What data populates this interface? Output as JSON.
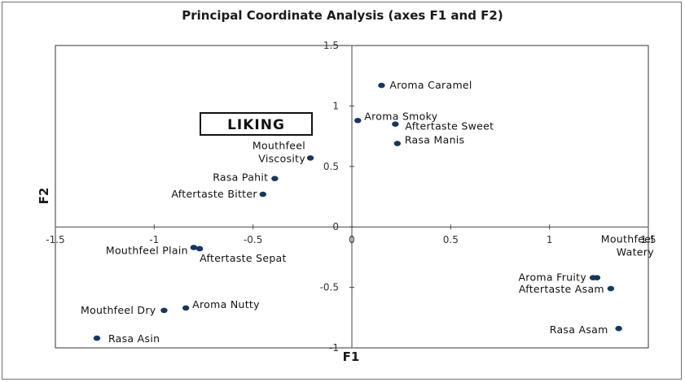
{
  "chart_data": {
    "type": "scatter",
    "title": "Principal Coordinate Analysis (axes F1 and F2)",
    "xlabel": "F1",
    "ylabel": "F2",
    "xlim": [
      -1.5,
      1.5
    ],
    "ylim": [
      -1,
      1.5
    ],
    "x_ticks": [
      "-1.5",
      "-1",
      "-0.5",
      "0",
      "0.5",
      "1",
      "1.5"
    ],
    "y_ticks": [
      "-1",
      "-0.5",
      "0",
      "0.5",
      "1",
      "1.5"
    ],
    "annotation": "LIKING",
    "marker_color": "#17375e",
    "points": [
      {
        "label": "Aroma Caramel",
        "x": 0.15,
        "y": 1.17
      },
      {
        "label": "Aroma Smoky",
        "x": 0.03,
        "y": 0.88
      },
      {
        "label": "Aftertaste Sweet",
        "x": 0.22,
        "y": 0.85
      },
      {
        "label": "Rasa Manis",
        "x": 0.23,
        "y": 0.69
      },
      {
        "label": "Mouthfeel Viscosity",
        "x": -0.21,
        "y": 0.57
      },
      {
        "label": "Rasa Pahit",
        "x": -0.39,
        "y": 0.4
      },
      {
        "label": "Aftertaste Bitter",
        "x": -0.45,
        "y": 0.27
      },
      {
        "label": "Mouthfeel Plain",
        "x": -0.8,
        "y": -0.17
      },
      {
        "label": "Aftertaste Sepat",
        "x": -0.77,
        "y": -0.18
      },
      {
        "label": "Mouthfeel Dry",
        "x": -0.95,
        "y": -0.69
      },
      {
        "label": "Aroma Nutty",
        "x": -0.84,
        "y": -0.67
      },
      {
        "label": "Rasa Asin",
        "x": -1.29,
        "y": -0.92
      },
      {
        "label": "Mouthfeel Watery",
        "x": 1.24,
        "y": -0.42
      },
      {
        "label": "Aroma Fruity",
        "x": 1.22,
        "y": -0.42
      },
      {
        "label": "Aftertaste Asam",
        "x": 1.31,
        "y": -0.51
      },
      {
        "label": "Rasa Asam",
        "x": 1.35,
        "y": -0.84
      }
    ]
  }
}
